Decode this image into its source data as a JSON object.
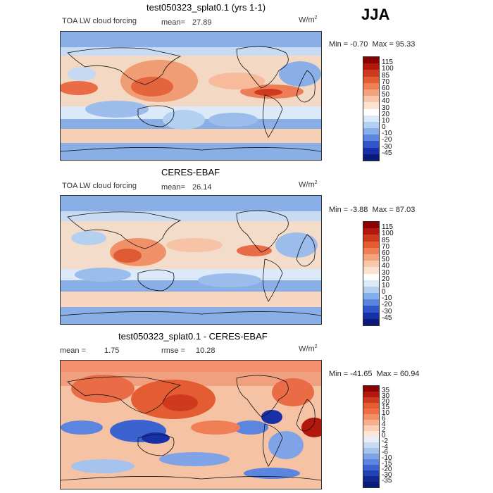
{
  "season": "JJA",
  "units_main": "W/m",
  "units_sup": "2",
  "panels": [
    {
      "title": "test050323_splat0.1 (yrs 1-1)",
      "left_label": "TOA LW cloud forcing",
      "stat1_label": "mean=",
      "stat1_value": "27.89",
      "stat2_label": "",
      "stat2_value": "",
      "min_label": "Min =",
      "min_value": "-0.70",
      "max_label": "Max =",
      "max_value": "95.33",
      "colorbar_levels": [
        "115",
        "100",
        "85",
        "70",
        "60",
        "50",
        "40",
        "30",
        "20",
        "10",
        "0",
        "-10",
        "-20",
        "-30",
        "-45"
      ],
      "colorbar_colors": [
        "#8b0000",
        "#b2180e",
        "#cf3a1f",
        "#e45c32",
        "#f07f55",
        "#f5a37c",
        "#f9c7a9",
        "#fde3cf",
        "#ffffff",
        "#dbe9f8",
        "#b4d0f0",
        "#86aeea",
        "#5b85de",
        "#2f55c8",
        "#1730a8",
        "#0a1a7a"
      ]
    },
    {
      "title": "CERES-EBAF",
      "left_label": "TOA LW cloud forcing",
      "stat1_label": "mean=",
      "stat1_value": "26.14",
      "stat2_label": "",
      "stat2_value": "",
      "min_label": "Min =",
      "min_value": "-3.88",
      "max_label": "Max =",
      "max_value": "87.03",
      "colorbar_levels": [
        "115",
        "100",
        "85",
        "70",
        "60",
        "50",
        "40",
        "30",
        "20",
        "10",
        "0",
        "-10",
        "-20",
        "-30",
        "-45"
      ],
      "colorbar_colors": [
        "#8b0000",
        "#b2180e",
        "#cf3a1f",
        "#e45c32",
        "#f07f55",
        "#f5a37c",
        "#f9c7a9",
        "#fde3cf",
        "#ffffff",
        "#dbe9f8",
        "#b4d0f0",
        "#86aeea",
        "#5b85de",
        "#2f55c8",
        "#1730a8",
        "#0a1a7a"
      ]
    },
    {
      "title": "test050323_splat0.1 - CERES-EBAF",
      "left_label": "",
      "stat1_label": "mean =",
      "stat1_value": "1.75",
      "stat2_label": "rmse =",
      "stat2_value": "10.28",
      "min_label": "Min =",
      "min_value": "-41.65",
      "max_label": "Max =",
      "max_value": "60.94",
      "colorbar_levels": [
        "35",
        "30",
        "20",
        "15",
        "10",
        "6",
        "4",
        "2",
        "0",
        "-2",
        "-4",
        "-6",
        "-10",
        "-15",
        "-20",
        "-30",
        "-35"
      ],
      "colorbar_colors": [
        "#8b0000",
        "#b2180e",
        "#cf3a1f",
        "#e45c32",
        "#ee6f45",
        "#f28f68",
        "#f6ae8d",
        "#fbcfb6",
        "#fde6d8",
        "#e8eff9",
        "#c9dbf3",
        "#a6c3ee",
        "#7fa3e6",
        "#5b85de",
        "#3b63d0",
        "#2343b5",
        "#13288f",
        "#0a1a7a"
      ]
    }
  ]
}
